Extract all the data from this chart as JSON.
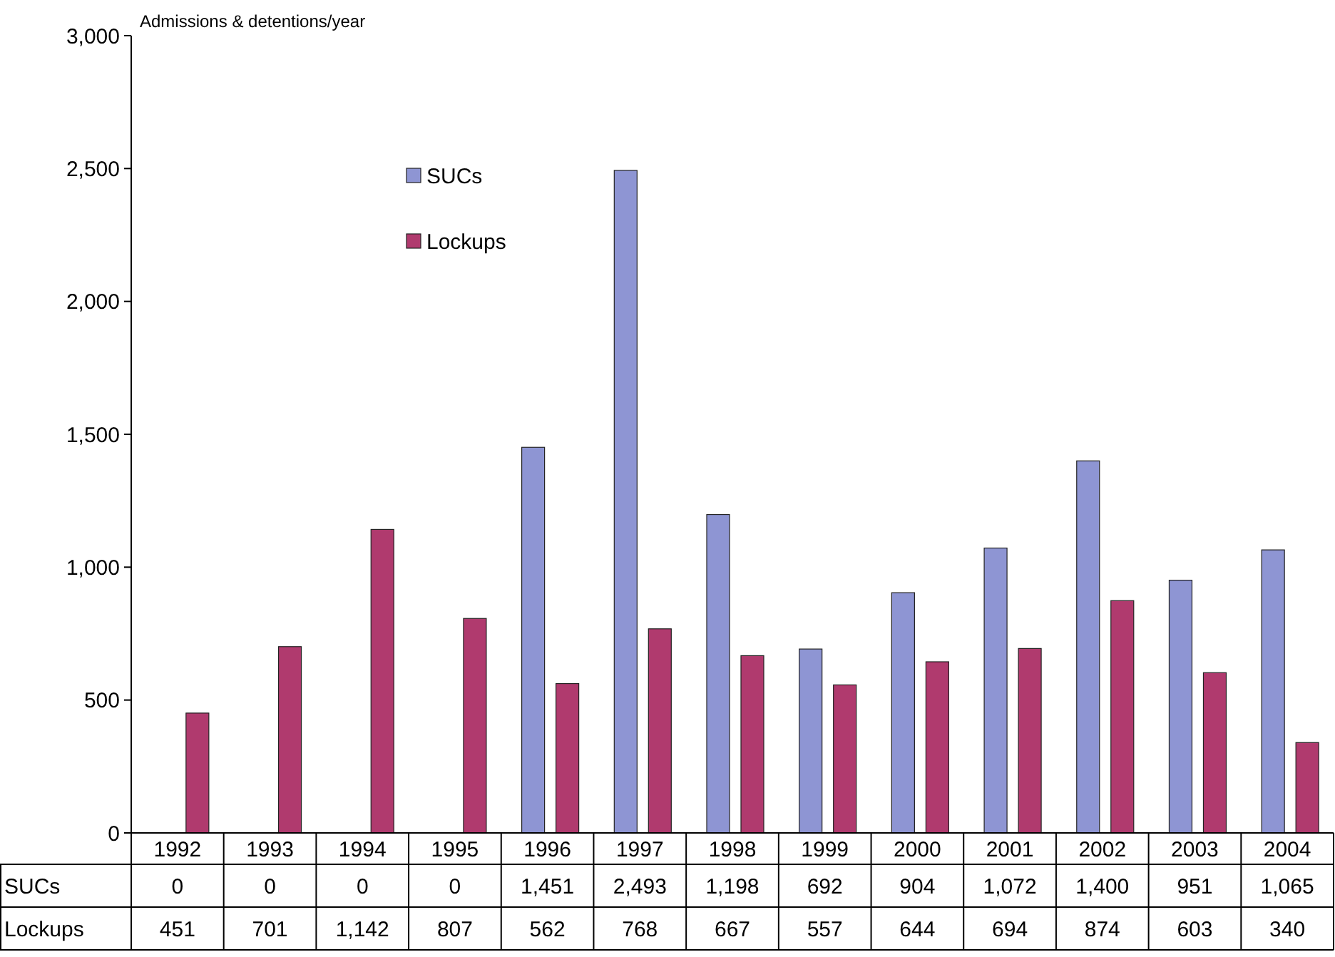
{
  "chart_data": {
    "type": "bar",
    "ylabel": "Admissions & detentions/year",
    "categories": [
      "1992",
      "1993",
      "1994",
      "1995",
      "1996",
      "1997",
      "1998",
      "1999",
      "2000",
      "2001",
      "2002",
      "2003",
      "2004"
    ],
    "series": [
      {
        "name": "SUCs",
        "color": "#8e95d3",
        "values": [
          0,
          0,
          0,
          0,
          1451,
          2493,
          1198,
          692,
          904,
          1072,
          1400,
          951,
          1065
        ],
        "value_labels": [
          "0",
          "0",
          "0",
          "0",
          "1,451",
          "2,493",
          "1,198",
          "692",
          "904",
          "1,072",
          "1,400",
          "951",
          "1,065"
        ]
      },
      {
        "name": "Lockups",
        "color": "#b03a6e",
        "values": [
          451,
          701,
          1142,
          807,
          562,
          768,
          667,
          557,
          644,
          694,
          874,
          603,
          340
        ],
        "value_labels": [
          "451",
          "701",
          "1,142",
          "807",
          "562",
          "768",
          "667",
          "557",
          "644",
          "694",
          "874",
          "603",
          "340"
        ]
      }
    ],
    "ylim": [
      0,
      3000
    ],
    "yticks": [
      {
        "value": 0,
        "label": "0"
      },
      {
        "value": 500,
        "label": "500"
      },
      {
        "value": 1000,
        "label": "1,000"
      },
      {
        "value": 1500,
        "label": "1,500"
      },
      {
        "value": 2000,
        "label": "2,000"
      },
      {
        "value": 2500,
        "label": "2,500"
      },
      {
        "value": 3000,
        "label": "3,000"
      }
    ],
    "grid": false,
    "legend": "top"
  }
}
